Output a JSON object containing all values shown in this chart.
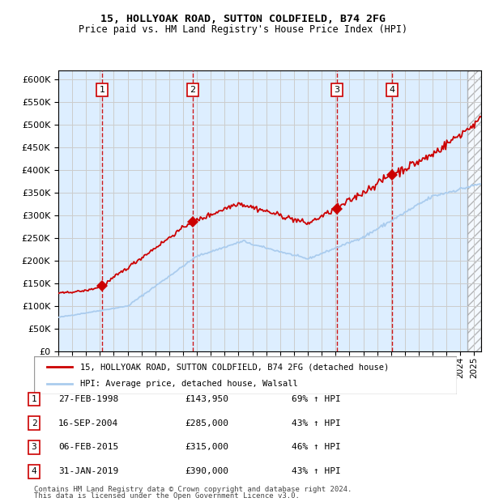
{
  "title1": "15, HOLLYOAK ROAD, SUTTON COLDFIELD, B74 2FG",
  "title2": "Price paid vs. HM Land Registry's House Price Index (HPI)",
  "xlabel": "",
  "ylabel": "",
  "ylim": [
    0,
    620000
  ],
  "yticks": [
    0,
    50000,
    100000,
    150000,
    200000,
    250000,
    300000,
    350000,
    400000,
    450000,
    500000,
    550000,
    600000
  ],
  "xmin": 1995.0,
  "xmax": 2025.5,
  "background_color": "#ffffff",
  "plot_bg_color": "#ddeeff",
  "grid_color": "#cccccc",
  "hpi_color": "#aaccee",
  "price_color": "#cc0000",
  "sale_marker_color": "#cc0000",
  "dashed_line_color": "#cc0000",
  "transactions": [
    {
      "num": 1,
      "date_label": "27-FEB-1998",
      "year": 1998.15,
      "price": 143950,
      "pct": "69%",
      "label": "27-FEB-1998",
      "price_str": "£143,950"
    },
    {
      "num": 2,
      "date_label": "16-SEP-2004",
      "year": 2004.71,
      "price": 285000,
      "pct": "43%",
      "label": "16-SEP-2004",
      "price_str": "£285,000"
    },
    {
      "num": 3,
      "date_label": "06-FEB-2015",
      "year": 2015.1,
      "price": 315000,
      "pct": "46%",
      "label": "06-FEB-2015",
      "price_str": "£315,000"
    },
    {
      "num": 4,
      "date_label": "31-JAN-2019",
      "year": 2019.08,
      "price": 390000,
      "pct": "43%",
      "label": "31-JAN-2019",
      "price_str": "£390,000"
    }
  ],
  "legend_line1": "15, HOLLYOAK ROAD, SUTTON COLDFIELD, B74 2FG (detached house)",
  "legend_line2": "HPI: Average price, detached house, Walsall",
  "footer1": "Contains HM Land Registry data © Crown copyright and database right 2024.",
  "footer2": "This data is licensed under the Open Government Licence v3.0."
}
